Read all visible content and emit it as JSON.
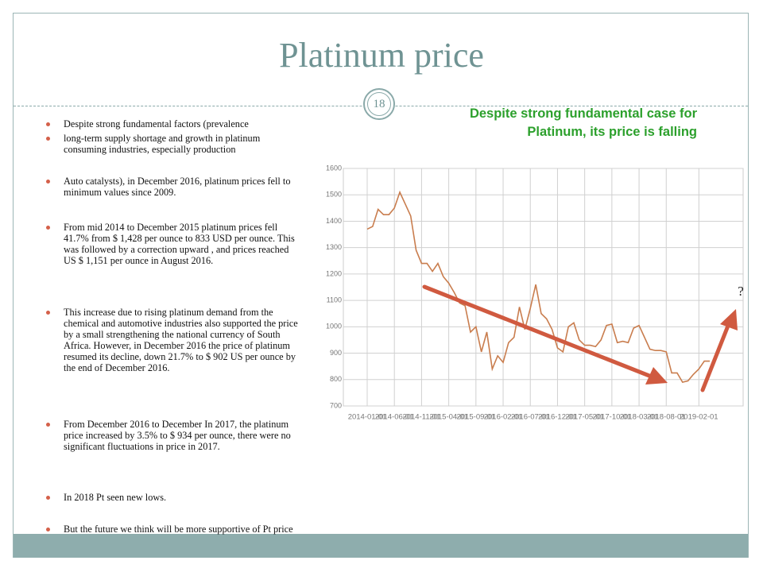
{
  "slide": {
    "title": "Platinum price",
    "page_number": "18",
    "bullets": [
      "Despite strong fundamental factors (prevalence",
      "long-term supply shortage and growth in platinum consuming  industries, especially production",
      "Auto catalysts), in December 2016, platinum prices fell to minimum  values since 2009.",
      "From  mid  2014 to December 2015 platinum prices fell 41.7% from $ 1,428 per ounce to 833 USD per ounce. This was followed by a correction upward , and prices reached US $ 1,151 per ounce in August 2016.",
      "This increase due to rising platinum demand from the chemical  and  automotive industries also supported the price by a small strengthening the national currency of South Africa. However, in  December 2016  the price of platinum resumed its decline,  down 21.7% to $ 902 US per ounce by the end of December 2016.",
      "From December 2016 to December In  2017, the platinum price increased by 3.5% to $ 934 per ounce, there were no significant fluctuations in price in 2017.",
      "In 2018 Pt seen new lows.",
      "But the future we think  will be more supportive of Pt price"
    ],
    "caption_line1": "Despite strong fundamental case for",
    "caption_line2": "Platinum, its price is falling",
    "question_mark": "?"
  },
  "chart_data": {
    "type": "line",
    "categories": [
      "2014-01-01",
      null,
      null,
      null,
      null,
      "2014-06-01",
      null,
      null,
      null,
      null,
      "2014-11-01",
      null,
      null,
      null,
      null,
      "2015-04-01",
      null,
      null,
      null,
      null,
      "2015-09-01",
      null,
      null,
      null,
      null,
      "2016-02-01",
      null,
      null,
      null,
      null,
      "2016-07-01",
      null,
      null,
      null,
      null,
      "2016-12-01",
      null,
      null,
      null,
      null,
      "2017-05-01",
      null,
      null,
      null,
      null,
      "2017-10-01",
      null,
      null,
      null,
      null,
      "2018-03-01",
      null,
      null,
      null,
      null,
      "2018-08-01",
      null,
      null,
      null,
      null,
      null,
      "2019-02-01",
      null,
      null
    ],
    "values": [
      1370,
      1380,
      1445,
      1425,
      1425,
      1450,
      1510,
      1465,
      1420,
      1290,
      1240,
      1240,
      1210,
      1240,
      1190,
      1165,
      1130,
      1090,
      1080,
      980,
      1000,
      905,
      980,
      840,
      890,
      865,
      940,
      960,
      1075,
      990,
      1070,
      1160,
      1050,
      1030,
      990,
      920,
      905,
      1000,
      1015,
      950,
      930,
      930,
      925,
      950,
      1005,
      1010,
      940,
      945,
      940,
      995,
      1005,
      960,
      915,
      910,
      910,
      905,
      825,
      825,
      790,
      795,
      820,
      840,
      870,
      870
    ],
    "color": "#c97d4e",
    "ylim": [
      700,
      1600
    ],
    "yticks": [
      700,
      800,
      900,
      1000,
      1100,
      1200,
      1300,
      1400,
      1500,
      1600
    ],
    "grid": true
  }
}
